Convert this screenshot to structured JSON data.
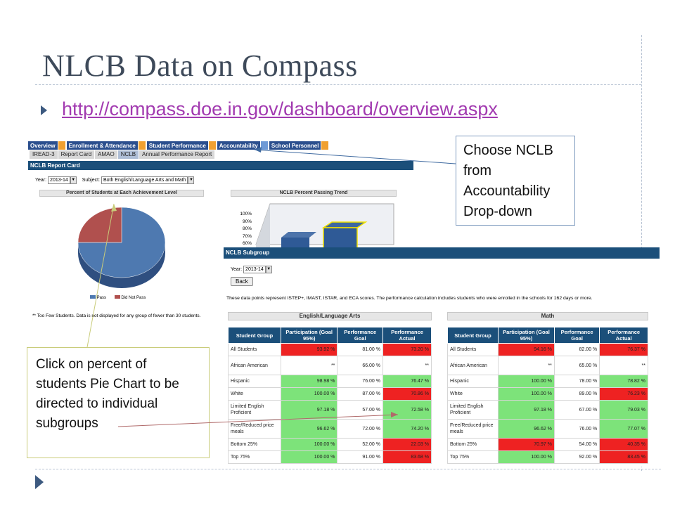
{
  "slide": {
    "title": "NLCB Data on Compass",
    "link": "http://compass.doe.in.gov/dashboard/overview.aspx"
  },
  "shot1": {
    "nav": [
      "Overview",
      "Enrollment & Attendance",
      "Student Performance",
      "Accountability",
      "School Personnel"
    ],
    "subtabs": [
      "IREAD-3",
      "Report Card",
      "AMAO",
      "NCLB",
      "Annual Performance Report"
    ],
    "band_title": "NCLB Report Card",
    "year_label": "Year:",
    "year_value": "2013-14",
    "subject_label": "Subject:",
    "subject_value": "Both English/Language Arts and Math",
    "pie_title": "Percent of Students at Each Achievement Level",
    "pie_pass_pct": 75,
    "legend_pass": "Pass",
    "legend_fail": "Did Not Pass",
    "footnote": "** Too Few Students. Data is not displayed for any group of fewer than 30 students.",
    "trend_title": "NCLB Percent Passing Trend",
    "trend_ticks": [
      "100%",
      "90%",
      "80%",
      "70%",
      "60%"
    ]
  },
  "shot2": {
    "band_title": "NCLB Subgroup",
    "year_label": "Year:",
    "year_value": "2013-14",
    "back_label": "Back",
    "note": "These data points represent ISTEP+, IMAST, ISTAR, and ECA scores. The performance calculation includes students who were enrolled in the schools for 162 days or more.",
    "ela_title": "English/Language Arts",
    "math_title": "Math",
    "headers": [
      "Student Group",
      "Participation (Goal 95%)",
      "Performance Goal",
      "Performance Actual"
    ],
    "ela_rows": [
      {
        "group": "All Students",
        "part": "93.92 %",
        "goal": "81.00 %",
        "actual": "73.20 %",
        "pc": "r",
        "ac": "r"
      },
      {
        "group": "African American",
        "part": "**",
        "goal": "66.00 %",
        "actual": "**",
        "pc": "w",
        "ac": "w"
      },
      {
        "group": "Hispanic",
        "part": "98.98 %",
        "goal": "76.00 %",
        "actual": "76.47 %",
        "pc": "g",
        "ac": "g"
      },
      {
        "group": "White",
        "part": "100.00 %",
        "goal": "87.00 %",
        "actual": "70.86 %",
        "pc": "g",
        "ac": "r"
      },
      {
        "group": "Limited English Proficient",
        "part": "97.18 %",
        "goal": "57.00 %",
        "actual": "72.58 %",
        "pc": "g",
        "ac": "g"
      },
      {
        "group": "Free/Reduced price meals",
        "part": "96.62 %",
        "goal": "72.00 %",
        "actual": "74.20 %",
        "pc": "g",
        "ac": "g"
      },
      {
        "group": "Bottom 25%",
        "part": "100.00 %",
        "goal": "52.00 %",
        "actual": "22.03 %",
        "pc": "g",
        "ac": "r"
      },
      {
        "group": "Top 75%",
        "part": "100.00 %",
        "goal": "91.00 %",
        "actual": "83.68 %",
        "pc": "g",
        "ac": "r"
      }
    ],
    "math_rows": [
      {
        "group": "All Students",
        "part": "94.16 %",
        "goal": "82.00 %",
        "actual": "76.37 %",
        "pc": "r",
        "ac": "r"
      },
      {
        "group": "African American",
        "part": "**",
        "goal": "65.00 %",
        "actual": "**",
        "pc": "w",
        "ac": "w"
      },
      {
        "group": "Hispanic",
        "part": "100.00 %",
        "goal": "78.00 %",
        "actual": "78.82 %",
        "pc": "g",
        "ac": "g"
      },
      {
        "group": "White",
        "part": "100.00 %",
        "goal": "89.00 %",
        "actual": "76.23 %",
        "pc": "g",
        "ac": "r"
      },
      {
        "group": "Limited English Proficient",
        "part": "97.18 %",
        "goal": "67.00 %",
        "actual": "79.03 %",
        "pc": "g",
        "ac": "g"
      },
      {
        "group": "Free/Reduced price meals",
        "part": "96.62 %",
        "goal": "76.00 %",
        "actual": "77.07 %",
        "pc": "g",
        "ac": "g"
      },
      {
        "group": "Bottom 25%",
        "part": "70.97 %",
        "goal": "54.00 %",
        "actual": "40.35 %",
        "pc": "r",
        "ac": "r"
      },
      {
        "group": "Top 75%",
        "part": "100.00 %",
        "goal": "92.00 %",
        "actual": "83.45 %",
        "pc": "g",
        "ac": "r"
      }
    ]
  },
  "callouts": {
    "nclb": "Choose NCLB from Accountability Drop-down",
    "pie": "Click on percent of students Pie Chart to be directed to individual subgroups"
  },
  "colors": {
    "nav_blue": "#2b4f8e",
    "band_blue": "#1b4f7a",
    "pass": "#4e79b0",
    "fail": "#b0504e",
    "green": "#7de37a",
    "red": "#ee2222",
    "link": "#a23ab0"
  }
}
